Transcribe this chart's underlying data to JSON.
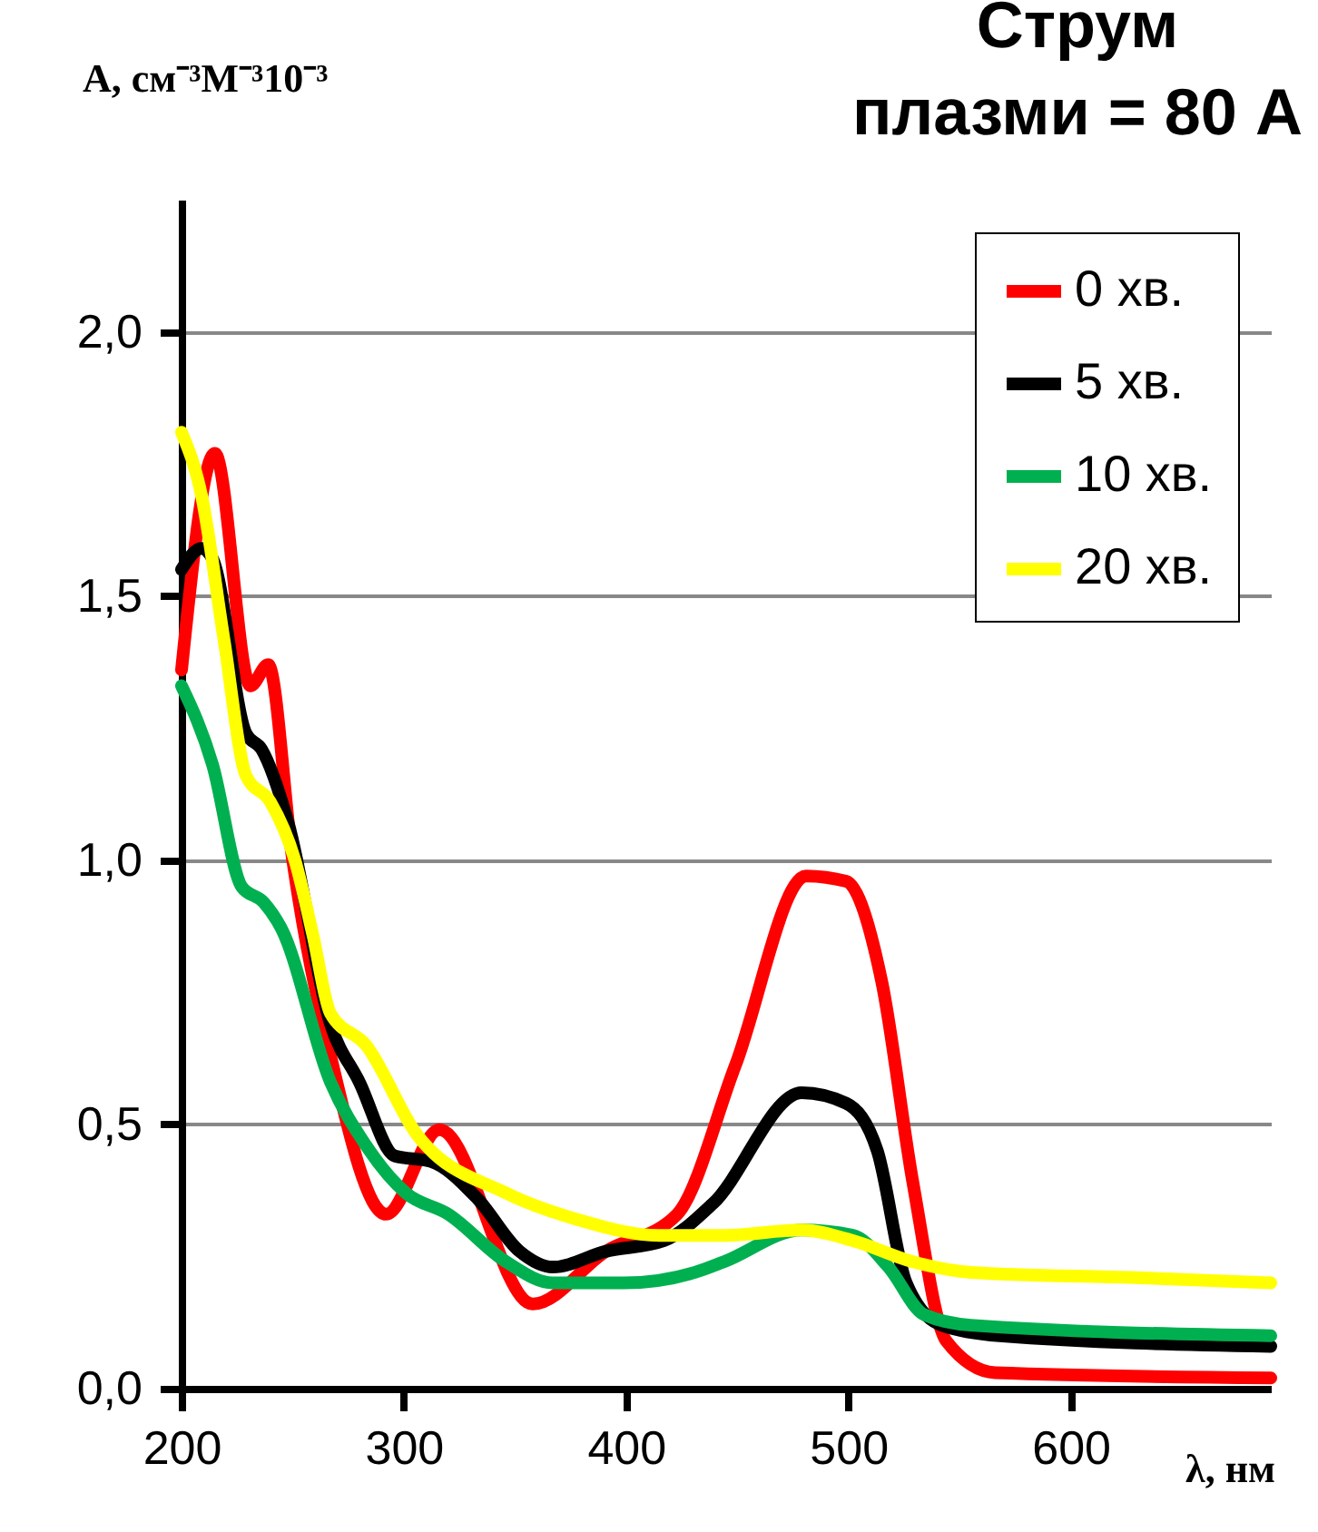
{
  "chart_data": {
    "type": "line",
    "title": "Струм плазми = 80 А",
    "xlabel": "λ, нм",
    "ylabel": "A, см⁻³М⁻³10⁻³",
    "xlim": [
      200,
      690
    ],
    "xticks": [
      200,
      300,
      400,
      500,
      600
    ],
    "ylim": [
      0,
      2.25
    ],
    "yticks": [
      {
        "value": 0,
        "label": "0,0"
      },
      {
        "value": 0.5,
        "label": "0,5"
      },
      {
        "value": 1,
        "label": "1,0"
      },
      {
        "value": 1.5,
        "label": "1,5"
      },
      {
        "value": 2,
        "label": "2,0"
      }
    ],
    "grid": "y",
    "legend": "top right",
    "marker": "none",
    "line_style": "solid",
    "series": [
      {
        "name": "0 хв.",
        "color": "#ff0000",
        "x": [
          200,
          215,
          231,
          239,
          250,
          267,
          292,
          316,
          358,
          391,
          423,
          449,
          481,
          499,
          515,
          529,
          544,
          566,
          690
        ],
        "values": [
          1.36,
          1.77,
          1.33,
          1.37,
          1.0,
          0.63,
          0.33,
          0.49,
          0.16,
          0.26,
          0.33,
          0.61,
          0.97,
          0.96,
          0.77,
          0.39,
          0.09,
          0.03,
          0.02
        ]
      },
      {
        "name": "5 хв.",
        "color": "#000000",
        "x": [
          200,
          209,
          214,
          229,
          236,
          248,
          267,
          280,
          296,
          312,
          333,
          352,
          367,
          391,
          417,
          439,
          479,
          499,
          513,
          526,
          542,
          568,
          690
        ],
        "values": [
          1.55,
          1.59,
          1.57,
          1.24,
          1.21,
          1.07,
          0.69,
          0.58,
          0.44,
          0.43,
          0.36,
          0.26,
          0.23,
          0.26,
          0.28,
          0.35,
          0.56,
          0.54,
          0.45,
          0.2,
          0.12,
          0.1,
          0.08
        ]
      },
      {
        "name": "10 хв.",
        "color": "#00b050",
        "x": [
          200,
          214,
          227,
          237,
          245,
          267,
          283,
          301,
          320,
          346,
          367,
          399,
          431,
          444,
          479,
          502,
          518,
          534,
          555,
          690
        ],
        "values": [
          1.33,
          1.18,
          0.95,
          0.92,
          0.87,
          0.58,
          0.46,
          0.37,
          0.33,
          0.24,
          0.2,
          0.2,
          0.22,
          0.24,
          0.3,
          0.29,
          0.23,
          0.14,
          0.12,
          0.1
        ]
      },
      {
        "name": "20 хв.",
        "color": "#ffff00",
        "x": [
          200,
          209,
          219,
          229,
          240,
          251,
          259,
          267,
          283,
          306,
          346,
          378,
          415,
          444,
          479,
          502,
          529,
          555,
          629,
          690
        ],
        "values": [
          1.81,
          1.69,
          1.42,
          1.16,
          1.11,
          1.0,
          0.86,
          0.71,
          0.65,
          0.48,
          0.37,
          0.32,
          0.29,
          0.29,
          0.3,
          0.28,
          0.24,
          0.22,
          0.21,
          0.2
        ]
      }
    ]
  }
}
